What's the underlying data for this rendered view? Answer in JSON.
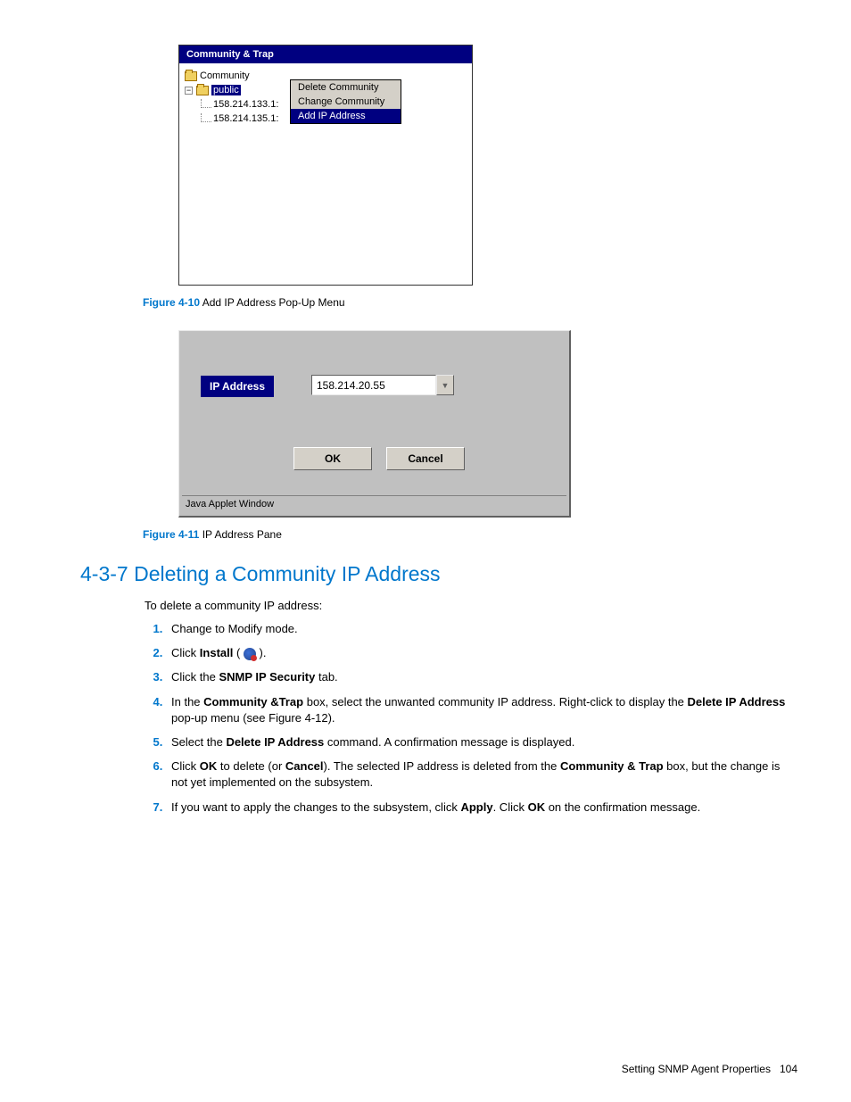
{
  "fig1": {
    "header": "Community & Trap",
    "tree": {
      "root": "Community",
      "node": "public",
      "ips": [
        "158.214.133.1:",
        "158.214.135.1:"
      ]
    },
    "menu": {
      "item1": "Delete Community",
      "item2": "Change Community",
      "item3": "Add IP Address"
    },
    "caption_label": "Figure 4-10",
    "caption_text": " Add IP Address Pop-Up Menu"
  },
  "fig2": {
    "label": "IP Address",
    "value": "158.214.20.55",
    "ok": "OK",
    "cancel": "Cancel",
    "status": "Java Applet Window",
    "caption_label": "Figure 4-11",
    "caption_text": " IP Address Pane"
  },
  "section": {
    "title": "4-3-7 Deleting a Community IP Address",
    "intro": "To delete a community IP address:"
  },
  "steps": {
    "s1": "Change to Modify mode.",
    "s2a": "Click ",
    "s2b": "Install",
    "s2c": " ( ",
    "s2d": " ).",
    "s3a": "Click the ",
    "s3b": "SNMP IP Security",
    "s3c": " tab.",
    "s4a": "In the ",
    "s4b": "Community &Trap",
    "s4c": " box, select the unwanted community IP address. Right-click to display the ",
    "s4d": "Delete IP Address",
    "s4e": " pop-up menu (see Figure 4-12).",
    "s5a": "Select the ",
    "s5b": "Delete IP Address",
    "s5c": " command. A confirmation message is displayed.",
    "s6a": "Click ",
    "s6b": "OK",
    "s6c": " to delete (or ",
    "s6d": "Cancel",
    "s6e": "). The selected IP address is deleted from the ",
    "s6f": "Community & Trap",
    "s6g": " box, but the change is not yet implemented on the subsystem.",
    "s7a": "If you want to apply the changes to the subsystem, click ",
    "s7b": "Apply",
    "s7c": ". Click ",
    "s7d": "OK",
    "s7e": " on the confirmation message."
  },
  "footer": {
    "text": "Setting SNMP Agent Properties",
    "page": "104"
  }
}
